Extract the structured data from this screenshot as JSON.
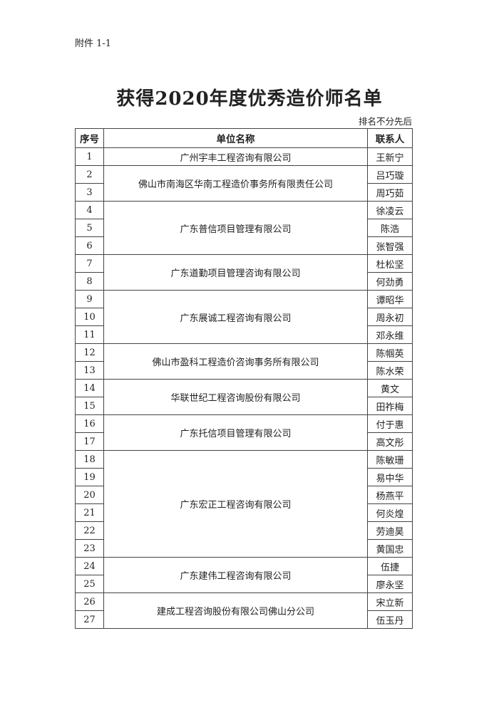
{
  "attachment_label": "附件 1-1",
  "title": "获得2020年度优秀造价师名单",
  "note": "排名不分先后",
  "table": {
    "headers": [
      "序号",
      "单位名称",
      "联系人"
    ],
    "groups": [
      {
        "company": "广州宇丰工程咨询有限公司",
        "rows": [
          {
            "no": "1",
            "name": "王新宁"
          }
        ]
      },
      {
        "company": "佛山市南海区华南工程造价事务所有限责任公司",
        "rows": [
          {
            "no": "2",
            "name": "吕巧璇"
          },
          {
            "no": "3",
            "name": "周巧茹"
          }
        ]
      },
      {
        "company": "广东普信项目管理有限公司",
        "rows": [
          {
            "no": "4",
            "name": "徐凌云"
          },
          {
            "no": "5",
            "name": "陈浩"
          },
          {
            "no": "6",
            "name": "张智强"
          }
        ]
      },
      {
        "company": "广东道勤项目管理咨询有限公司",
        "rows": [
          {
            "no": "7",
            "name": "杜松坚"
          },
          {
            "no": "8",
            "name": "何劲勇"
          }
        ]
      },
      {
        "company": "广东展诚工程咨询有限公司",
        "rows": [
          {
            "no": "9",
            "name": "谭昭华"
          },
          {
            "no": "10",
            "name": "周永初"
          },
          {
            "no": "11",
            "name": "邓永维"
          }
        ]
      },
      {
        "company": "佛山市盈科工程造价咨询事务所有限公司",
        "rows": [
          {
            "no": "12",
            "name": "陈帼英"
          },
          {
            "no": "13",
            "name": "陈水荣"
          }
        ]
      },
      {
        "company": "华联世纪工程咨询股份有限公司",
        "rows": [
          {
            "no": "14",
            "name": "黄文"
          },
          {
            "no": "15",
            "name": "田祚梅"
          }
        ]
      },
      {
        "company": "广东托信项目管理有限公司",
        "rows": [
          {
            "no": "16",
            "name": "付于惠"
          },
          {
            "no": "17",
            "name": "高文彤"
          }
        ]
      },
      {
        "company": "广东宏正工程咨询有限公司",
        "rows": [
          {
            "no": "18",
            "name": "陈敏珊"
          },
          {
            "no": "19",
            "name": "易中华"
          },
          {
            "no": "20",
            "name": "杨燕平"
          },
          {
            "no": "21",
            "name": "何炎煌"
          },
          {
            "no": "22",
            "name": "劳迪昊"
          },
          {
            "no": "23",
            "name": "黄国忠"
          }
        ]
      },
      {
        "company": "广东建伟工程咨询有限公司",
        "rows": [
          {
            "no": "24",
            "name": "伍捷"
          },
          {
            "no": "25",
            "name": "廖永坚"
          }
        ]
      },
      {
        "company": "建成工程咨询股份有限公司佛山分公司",
        "rows": [
          {
            "no": "26",
            "name": "宋立新"
          },
          {
            "no": "27",
            "name": "伍玉丹"
          }
        ]
      }
    ]
  }
}
